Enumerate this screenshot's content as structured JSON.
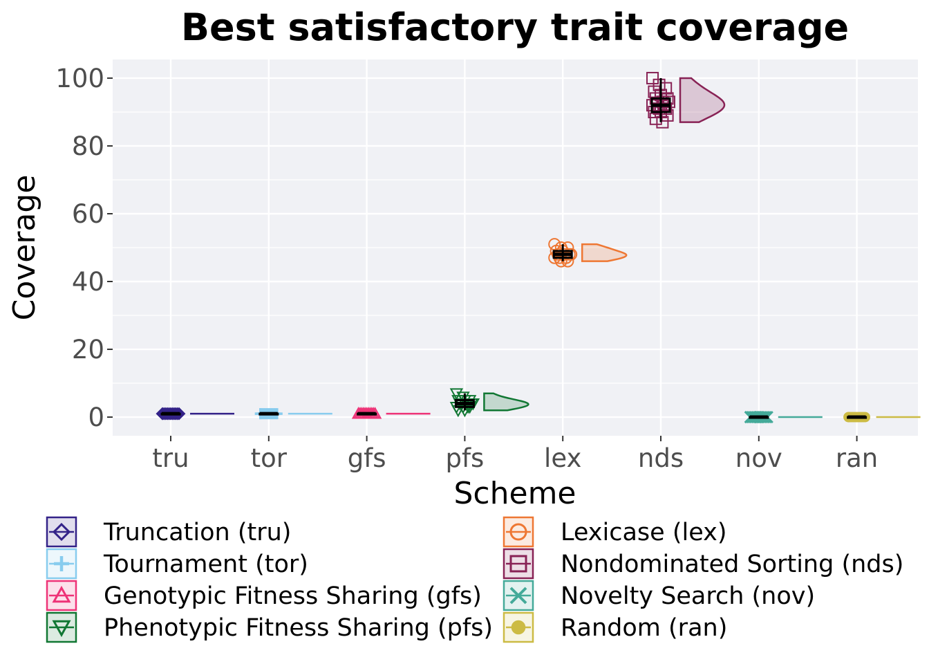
{
  "chart_data": {
    "type": "raincloud",
    "title": "Best satisfactory trait coverage",
    "xlabel": "Scheme",
    "ylabel": "Coverage",
    "ylim": [
      -5.5,
      105.5
    ],
    "yticks": [
      0,
      20,
      40,
      60,
      80,
      100
    ],
    "grid": true,
    "legend_position": "bottom",
    "categories": [
      "tru",
      "tor",
      "gfs",
      "pfs",
      "lex",
      "nds",
      "nov",
      "ran"
    ],
    "series": [
      {
        "key": "tru",
        "name": "Truncation (tru)",
        "color": "#332288",
        "marker": "diamond",
        "median": 1,
        "q1": 1,
        "q3": 1,
        "min": 1,
        "max": 1,
        "points": [
          1,
          1,
          1,
          1,
          1,
          1,
          1,
          1,
          1,
          1,
          1,
          1
        ]
      },
      {
        "key": "tor",
        "name": "Tournament (tor)",
        "color": "#88ccee",
        "marker": "plus",
        "median": 1,
        "q1": 1,
        "q3": 1,
        "min": 1,
        "max": 1,
        "points": [
          1,
          1,
          1,
          1,
          1,
          1,
          1,
          1,
          1,
          1,
          1,
          1
        ]
      },
      {
        "key": "gfs",
        "name": "Genotypic Fitness Sharing (gfs)",
        "color": "#ee3377",
        "marker": "triangle-up",
        "median": 1,
        "q1": 1,
        "q3": 1,
        "min": 1,
        "max": 1,
        "points": [
          1,
          1,
          1,
          1,
          1,
          1,
          1,
          1,
          1,
          1,
          1,
          1
        ]
      },
      {
        "key": "pfs",
        "name": "Phenotypic Fitness Sharing (pfs)",
        "color": "#117733",
        "marker": "triangle-down",
        "median": 4,
        "q1": 3,
        "q3": 5,
        "min": 2,
        "max": 7,
        "points": [
          7,
          6,
          5,
          5,
          5,
          4,
          4,
          4,
          4,
          4,
          3,
          3,
          3,
          3,
          2,
          2
        ]
      },
      {
        "key": "lex",
        "name": "Lexicase (lex)",
        "color": "#ee7733",
        "marker": "circle",
        "median": 48,
        "q1": 47,
        "q3": 49,
        "min": 46,
        "max": 51,
        "points": [
          51,
          50,
          50,
          49,
          49,
          48,
          48,
          48,
          48,
          47,
          47,
          47,
          46,
          46
        ]
      },
      {
        "key": "nds",
        "name": "Nondominated Sorting (nds)",
        "color": "#882255",
        "marker": "square",
        "median": 92,
        "q1": 90,
        "q3": 94,
        "min": 87,
        "max": 100,
        "points": [
          100,
          98,
          97,
          96,
          95,
          94,
          94,
          93,
          93,
          92,
          92,
          92,
          91,
          91,
          90,
          90,
          89,
          88,
          87
        ]
      },
      {
        "key": "nov",
        "name": "Novelty Search (nov)",
        "color": "#44aa99",
        "marker": "cross",
        "median": 0,
        "q1": 0,
        "q3": 0,
        "min": 0,
        "max": 0,
        "points": [
          0,
          0,
          0,
          0,
          0,
          0,
          0,
          0,
          0,
          0,
          0,
          0
        ]
      },
      {
        "key": "ran",
        "name": "Random (ran)",
        "color": "#ccbb44",
        "marker": "circle-bar",
        "median": 0,
        "q1": 0,
        "q3": 0,
        "min": 0,
        "max": 0,
        "points": [
          0,
          0,
          0,
          0,
          0,
          0,
          0,
          0,
          0,
          0,
          0,
          0
        ]
      }
    ]
  }
}
